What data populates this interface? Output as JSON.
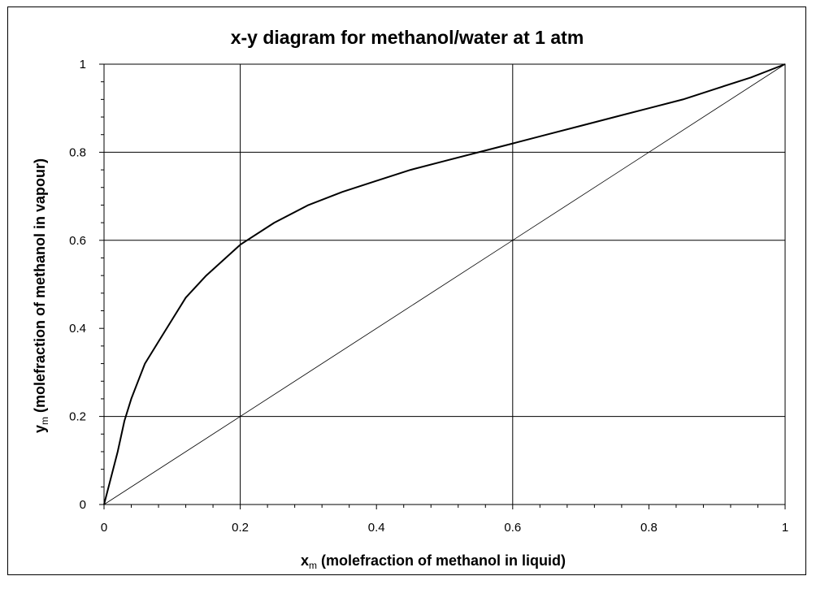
{
  "chart_data": {
    "type": "line",
    "title": "x-y diagram for methanol/water at 1 atm",
    "xlabel": {
      "symbol": "x",
      "subscript": "m",
      "text": " (molefraction of methanol in liquid)"
    },
    "ylabel": {
      "symbol": "y",
      "subscript": "m",
      "text": " (molefraction of methanol in vapour)"
    },
    "xlim": [
      0,
      1
    ],
    "ylim": [
      0,
      1
    ],
    "xticks": [
      0,
      0.2,
      0.4,
      0.6,
      0.8,
      1
    ],
    "yticks": [
      0,
      0.2,
      0.4,
      0.6,
      0.8,
      1
    ],
    "xtick_labels": [
      "0",
      "0.2",
      "0.4",
      "0.6",
      "0.8",
      "1"
    ],
    "ytick_labels": [
      "0",
      "0.2",
      "0.4",
      "0.6",
      "0.8",
      "1"
    ],
    "minor_tick_step": 0.04,
    "grid_x": [
      0.2,
      0.6
    ],
    "grid_y": [
      0.2,
      0.6,
      0.8
    ],
    "series": [
      {
        "role": "equilibrium-curve",
        "x": [
          0,
          0.01,
          0.02,
          0.03,
          0.04,
          0.05,
          0.06,
          0.08,
          0.1,
          0.12,
          0.15,
          0.2,
          0.25,
          0.3,
          0.35,
          0.4,
          0.45,
          0.5,
          0.55,
          0.6,
          0.65,
          0.7,
          0.75,
          0.8,
          0.85,
          0.9,
          0.95,
          1.0
        ],
        "y": [
          0,
          0.06,
          0.12,
          0.19,
          0.24,
          0.28,
          0.32,
          0.37,
          0.42,
          0.47,
          0.52,
          0.59,
          0.64,
          0.68,
          0.71,
          0.735,
          0.76,
          0.78,
          0.8,
          0.82,
          0.84,
          0.86,
          0.88,
          0.9,
          0.92,
          0.945,
          0.97,
          1.0
        ]
      },
      {
        "role": "diagonal-line",
        "x": [
          0,
          1
        ],
        "y": [
          0,
          1
        ]
      }
    ],
    "colors": {
      "curve": "#000000",
      "grid": "#000000",
      "background": "#ffffff"
    }
  }
}
